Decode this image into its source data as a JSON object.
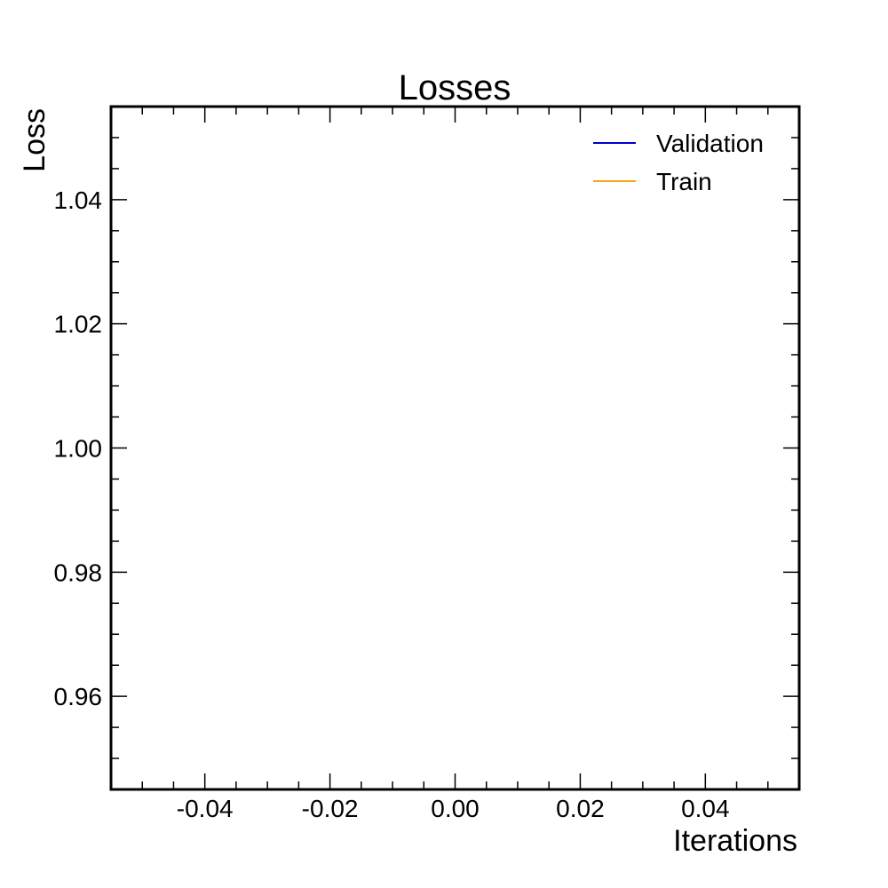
{
  "chart_data": {
    "type": "line",
    "title": "Losses",
    "xlabel": "Iterations",
    "ylabel": "Loss",
    "xlim": [
      -0.055,
      0.055
    ],
    "ylim": [
      0.945,
      1.055
    ],
    "xticks": [
      -0.04,
      -0.02,
      0.0,
      0.02,
      0.04
    ],
    "xtick_labels": [
      "-0.04",
      "-0.02",
      "0.00",
      "0.02",
      "0.04"
    ],
    "yticks": [
      0.96,
      0.98,
      1.0,
      1.02,
      1.04
    ],
    "ytick_labels": [
      "0.96",
      "0.98",
      "1.00",
      "1.02",
      "1.04"
    ],
    "x_minor_step": 0.005,
    "y_minor_step": 0.005,
    "grid": false,
    "legend_position": "top-right",
    "series": [
      {
        "name": "Validation",
        "color": "#0000cc",
        "x": [],
        "y": []
      },
      {
        "name": "Train",
        "color": "#ffa500",
        "x": [],
        "y": []
      }
    ]
  }
}
